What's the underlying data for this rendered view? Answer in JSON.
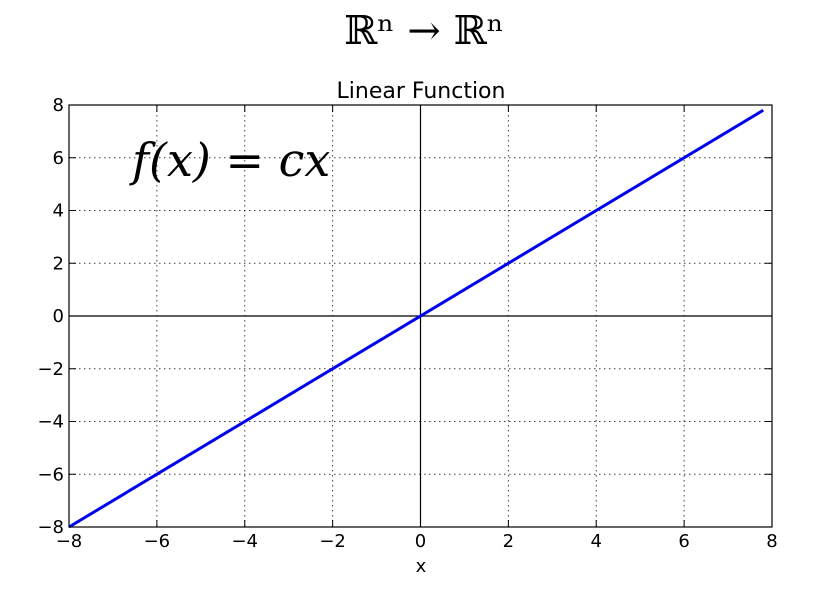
{
  "figure": {
    "suptitle": "ℝⁿ → ℝⁿ"
  },
  "chart_data": {
    "type": "line",
    "title": "Linear Function",
    "xlabel": "x",
    "ylabel": "",
    "xlim": [
      -8,
      8
    ],
    "ylim": [
      -8,
      8
    ],
    "xticks": [
      -8,
      -6,
      -4,
      -2,
      0,
      2,
      4,
      6,
      8
    ],
    "yticks": [
      -8,
      -6,
      -4,
      -2,
      0,
      2,
      4,
      6,
      8
    ],
    "xtick_labels": [
      "−8",
      "−6",
      "−4",
      "−2",
      "0",
      "2",
      "4",
      "6",
      "8"
    ],
    "ytick_labels": [
      "−8",
      "−6",
      "−4",
      "−2",
      "0",
      "2",
      "4",
      "6",
      "8"
    ],
    "grid": true,
    "grid_style": "dotted",
    "zero_lines": true,
    "annotation": "f(x) = cx",
    "series": [
      {
        "color": "#0000ee",
        "x": [
          -8,
          7.8
        ],
        "y": [
          -8,
          7.8
        ]
      }
    ]
  }
}
